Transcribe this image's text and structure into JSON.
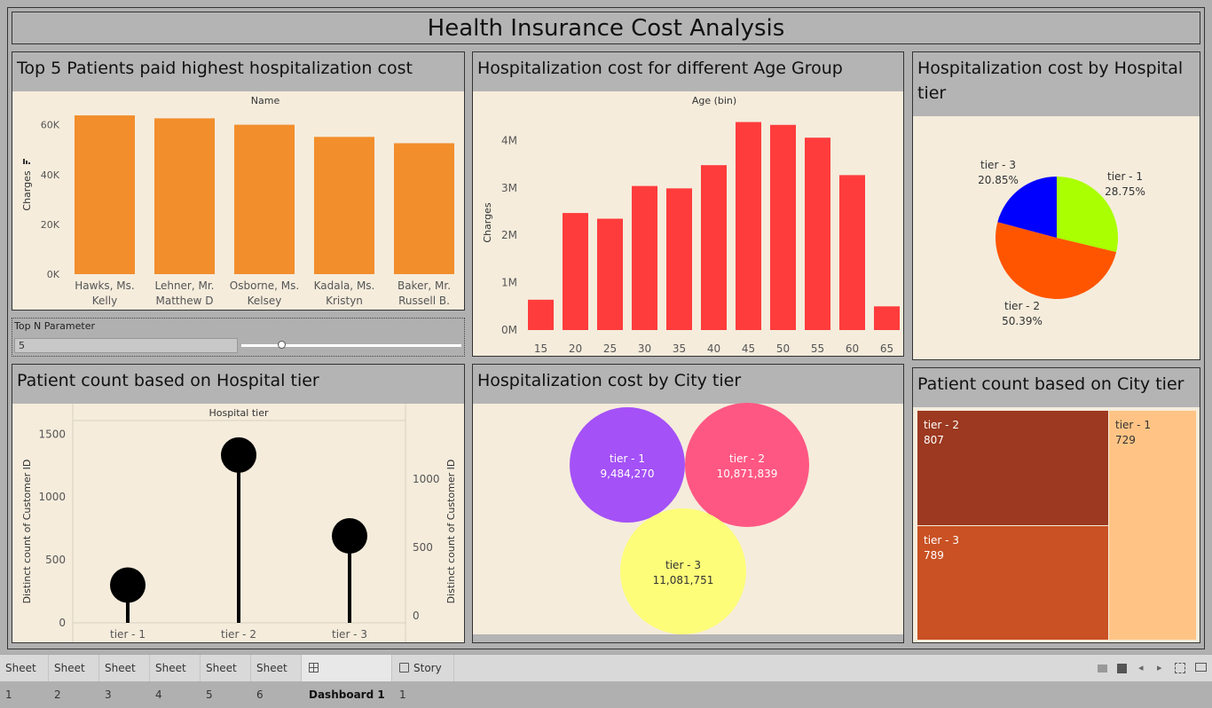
{
  "dashboard_title": "Health Insurance Cost Analysis",
  "panels": {
    "top5": {
      "title": "Top 5 Patients paid highest hospitalization cost"
    },
    "age": {
      "title": "Hospitalization cost for different Age Group"
    },
    "hosp_pie": {
      "title": "Hospitalization cost by Hospital tier"
    },
    "lollipop": {
      "title": "Patient count based on Hospital tier"
    },
    "city_bubbles": {
      "title": "Hospitalization cost by City tier"
    },
    "city_tree": {
      "title": "Patient count based on City tier"
    }
  },
  "parameter": {
    "label": "Top N Parameter",
    "value": "5",
    "slider_fraction": 0.18
  },
  "tabs": [
    "Sheet 1",
    "Sheet 2",
    "Sheet 3",
    "Sheet 4",
    "Sheet 5",
    "Sheet 6",
    "Dashboard 1",
    "Story 1"
  ],
  "active_tab": "Dashboard 1",
  "colors": {
    "orange_bar": "#f28e2c",
    "red_bar": "#ff3c3c",
    "tier1_pie": "#aaff00",
    "tier2_pie": "#ff5500",
    "tier3_pie": "#0000ff",
    "bubble1": "#a451f7",
    "bubble2": "#ff5783",
    "bubble3": "#fdfd7a",
    "tree1": "#ffc485",
    "tree2": "#9c3920",
    "tree3": "#c95123"
  },
  "chart_data": [
    {
      "type": "bar",
      "title": "Top 5 Patients paid highest hospitalization cost",
      "xlabel": "Name",
      "ylabel": "Charges",
      "categories": [
        [
          "Hawks, Ms.",
          "Kelly"
        ],
        [
          "Lehner, Mr.",
          "Matthew D"
        ],
        [
          "Osborne, Ms.",
          "Kelsey"
        ],
        [
          "Kadala, Ms.",
          "Kristyn"
        ],
        [
          "Baker, Mr.",
          "Russell B."
        ]
      ],
      "values": [
        63770,
        62593,
        60021,
        55135,
        52591
      ],
      "yticks": [
        "0K",
        "20K",
        "40K",
        "60K"
      ],
      "ylim": [
        0,
        67000
      ]
    },
    {
      "type": "bar",
      "title": "Hospitalization cost for different Age Group",
      "xlabel": "Age (bin)",
      "ylabel": "Charges",
      "categories": [
        "15",
        "20",
        "25",
        "30",
        "35",
        "40",
        "45",
        "50",
        "55",
        "60",
        "65"
      ],
      "values": [
        640000,
        2470000,
        2350000,
        3040000,
        2990000,
        3480000,
        4390000,
        4330000,
        4060000,
        3270000,
        500000
      ],
      "yticks": [
        "0M",
        "1M",
        "2M",
        "3M",
        "4M"
      ],
      "ylim": [
        0,
        4700000
      ]
    },
    {
      "type": "pie",
      "title": "Hospitalization cost by Hospital tier",
      "slices": [
        {
          "label": "tier - 1",
          "pct": "28.75%",
          "value": 28.75
        },
        {
          "label": "tier - 2",
          "pct": "50.39%",
          "value": 50.39
        },
        {
          "label": "tier - 3",
          "pct": "20.85%",
          "value": 20.85
        }
      ]
    },
    {
      "type": "scatter",
      "title": "Patient count based on Hospital tier",
      "xlabel": "Hospital tier",
      "ylabel": "Distinct count of Customer ID",
      "categories": [
        "tier - 1",
        "tier - 2",
        "tier - 3"
      ],
      "values": [
        300,
        1334,
        691
      ],
      "yticks_left": [
        "0",
        "500",
        "1000",
        "1500"
      ],
      "yticks_right": [
        "0",
        "500",
        "1000"
      ],
      "ylim": [
        0,
        1580
      ]
    },
    {
      "type": "bubble",
      "title": "Hospitalization cost by City tier",
      "bubbles": [
        {
          "label": "tier - 1",
          "value_text": "9,484,270",
          "value": 9484270
        },
        {
          "label": "tier - 2",
          "value_text": "10,871,839",
          "value": 10871839
        },
        {
          "label": "tier - 3",
          "value_text": "11,081,751",
          "value": 11081751
        }
      ]
    },
    {
      "type": "treemap",
      "title": "Patient count based on City tier",
      "cells": [
        {
          "label": "tier - 2",
          "value_text": "807",
          "value": 807
        },
        {
          "label": "tier - 3",
          "value_text": "789",
          "value": 789
        },
        {
          "label": "tier - 1",
          "value_text": "729",
          "value": 729
        }
      ]
    }
  ]
}
